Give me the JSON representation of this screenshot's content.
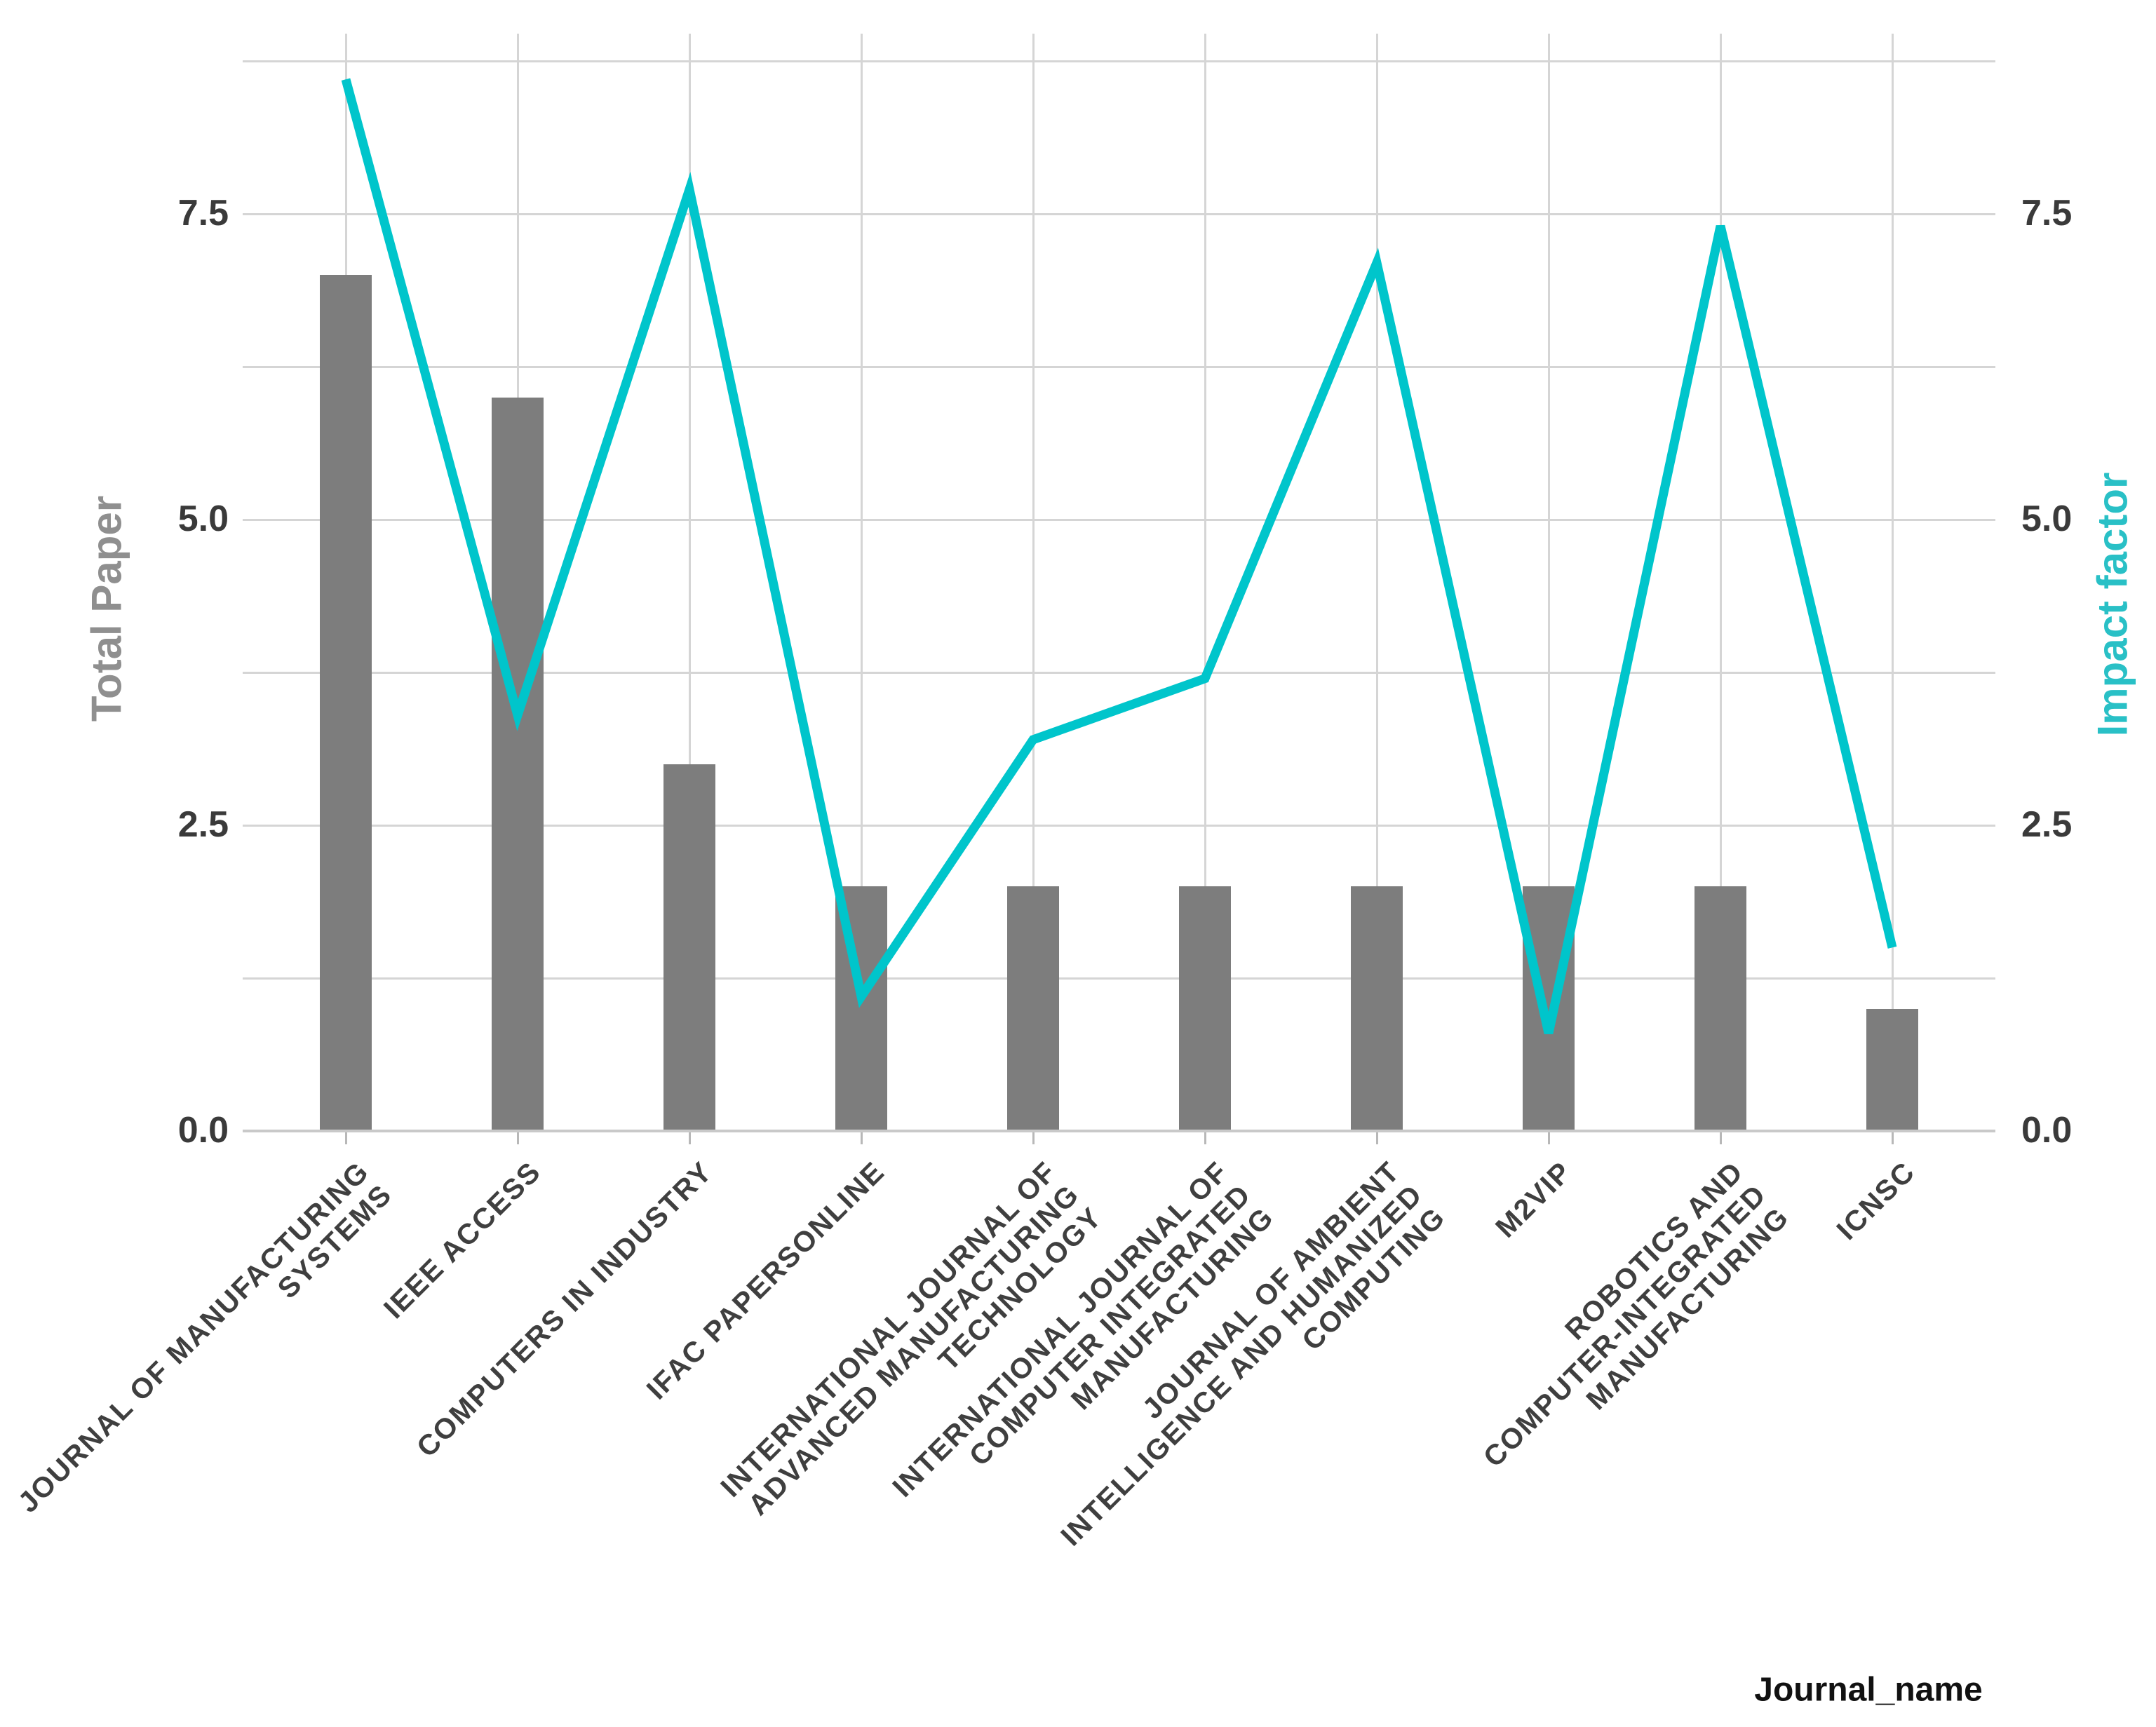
{
  "page": {
    "background": "#ffffff"
  },
  "chart_data": {
    "type": "bar+line",
    "title": "",
    "categories": [
      "JOURNAL OF MANUFACTURING SYSTEMS",
      "IEEE ACCESS",
      "COMPUTERS IN INDUSTRY",
      "IFAC PAPERSONLINE",
      "INTERNATIONAL JOURNAL OF ADVANCED MANUFACTURING TECHNOLOGY",
      "INTERNATIONAL JOURNAL OF COMPUTER INTEGRATED MANUFACTURING",
      "JOURNAL OF AMBIENT INTELLIGENCE AND HUMANIZED COMPUTING",
      "M2VIP",
      "ROBOTICS AND COMPUTER-INTEGRATED MANUFACTURING",
      "ICNSC"
    ],
    "categories_display": [
      "JOURNAL OF MANUFACTURING\nSYSTEMS",
      "IEEE ACCESS",
      "COMPUTERS IN INDUSTRY",
      "IFAC PAPERSONLINE",
      "INTERNATIONAL JOURNAL OF\nADVANCED MANUFACTURING\nTECHNOLOGY",
      "INTERNATIONAL JOURNAL OF\nCOMPUTER INTEGRATED\nMANUFACTURING",
      "JOURNAL OF AMBIENT\nINTELLIGENCE AND HUMANIZED\nCOMPUTING",
      "M2VIP",
      "ROBOTICS AND\nCOMPUTER-INTEGRATED\nMANUFACTURING",
      "ICNSC"
    ],
    "series": [
      {
        "name": "Total Paper",
        "type": "bar",
        "axis": "left",
        "color": "#7d7d7d",
        "values": [
          7,
          6,
          3,
          2,
          2,
          2,
          2,
          2,
          2,
          1
        ]
      },
      {
        "name": "Impact factor",
        "type": "line",
        "axis": "right",
        "color": "#00c5cb",
        "values": [
          8.6,
          3.4,
          7.7,
          1.1,
          3.2,
          3.7,
          7.1,
          0.8,
          7.4,
          1.5
        ]
      }
    ],
    "y_left": {
      "label": "Total Paper",
      "tick_labels": [
        "0.0",
        "2.5",
        "5.0",
        "7.5"
      ],
      "tick_values": [
        0,
        2.5,
        5,
        7.5
      ],
      "minor_values": [
        1.25,
        3.75,
        6.25,
        8.75
      ],
      "range": [
        0,
        8.97
      ]
    },
    "y_right": {
      "label": "Impact factor",
      "tick_labels": [
        "0.0",
        "2.5",
        "5.0",
        "7.5"
      ],
      "tick_values": [
        0,
        2.5,
        5,
        7.5
      ],
      "range": [
        0,
        8.97
      ]
    },
    "x_axis": {
      "label": "Journal_name"
    },
    "grid": {
      "on": true,
      "color": "#d5d5d5",
      "axis_line_color": "#c9c9c9",
      "tick_color": "#b8b8b8"
    },
    "legend_position": "none",
    "colors": {
      "bar": "#7d7d7d",
      "line": "#00c5cb",
      "left_axis_title": "#8f8f8f",
      "right_axis_title": "#29c0c6",
      "tick_text": "#3a3a3a",
      "category_text": "#3f3f3f"
    }
  }
}
